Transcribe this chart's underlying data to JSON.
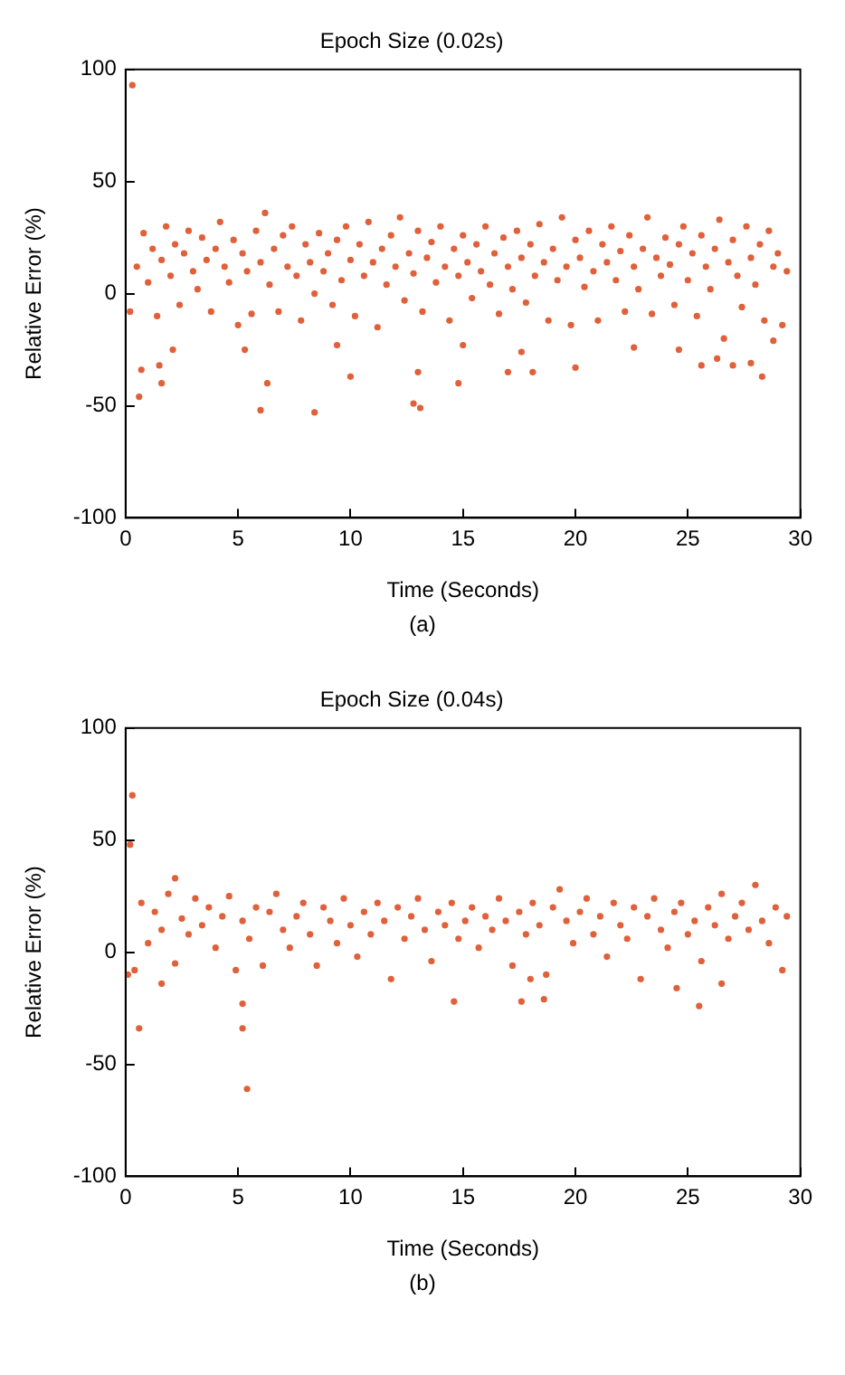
{
  "chart_data": [
    {
      "type": "scatter",
      "title": "Epoch Size (0.02s)",
      "xlabel": "Time (Seconds)",
      "ylabel": "Relative Error (%)",
      "annotations": [
        "(a)"
      ],
      "marker": "circle",
      "xlim": [
        0,
        30
      ],
      "xticks": [
        0,
        5,
        10,
        15,
        20,
        25,
        30
      ],
      "ylim": [
        -100,
        100
      ],
      "yticks": [
        -100,
        -50,
        0,
        50,
        100
      ],
      "series": [
        {
          "color": "#e0603a",
          "x": [
            0.3,
            0.6,
            0.7,
            1.5,
            1.6,
            2.1,
            5.3,
            6.0,
            6.3,
            8.4,
            9.4,
            10.0,
            13.0,
            12.8,
            13.1,
            14.8,
            15.0,
            17.0,
            17.6,
            18.1,
            20.0,
            22.6,
            24.6,
            25.6,
            26.3,
            27.0,
            27.8,
            28.3,
            28.8,
            0.2,
            0.5,
            0.8,
            1.0,
            1.2,
            1.4,
            1.6,
            1.8,
            2.0,
            2.2,
            2.4,
            2.6,
            2.8,
            3.0,
            3.2,
            3.4,
            3.6,
            3.8,
            4.0,
            4.2,
            4.4,
            4.6,
            4.8,
            5.0,
            5.2,
            5.4,
            5.6,
            5.8,
            6.0,
            6.2,
            6.4,
            6.6,
            6.8,
            7.0,
            7.2,
            7.4,
            7.6,
            7.8,
            8.0,
            8.2,
            8.4,
            8.6,
            8.8,
            9.0,
            9.2,
            9.4,
            9.6,
            9.8,
            10.0,
            10.2,
            10.4,
            10.6,
            10.8,
            11.0,
            11.2,
            11.4,
            11.6,
            11.8,
            12.0,
            12.2,
            12.4,
            12.6,
            12.8,
            13.0,
            13.2,
            13.4,
            13.6,
            13.8,
            14.0,
            14.2,
            14.4,
            14.6,
            14.8,
            15.0,
            15.2,
            15.4,
            15.6,
            15.8,
            16.0,
            16.2,
            16.4,
            16.6,
            16.8,
            17.0,
            17.2,
            17.4,
            17.6,
            17.8,
            18.0,
            18.2,
            18.4,
            18.6,
            18.8,
            19.0,
            19.2,
            19.4,
            19.6,
            19.8,
            20.0,
            20.2,
            20.4,
            20.6,
            20.8,
            21.0,
            21.2,
            21.4,
            21.6,
            21.8,
            22.0,
            22.2,
            22.4,
            22.6,
            22.8,
            23.0,
            23.2,
            23.4,
            23.6,
            23.8,
            24.0,
            24.2,
            24.4,
            24.6,
            24.8,
            25.0,
            25.2,
            25.4,
            25.6,
            25.8,
            26.0,
            26.2,
            26.4,
            26.6,
            26.8,
            27.0,
            27.2,
            27.4,
            27.6,
            27.8,
            28.0,
            28.2,
            28.4,
            28.6,
            28.8,
            29.0,
            29.2,
            29.4
          ],
          "values": [
            93,
            -46,
            -34,
            -32,
            -40,
            -25,
            -25,
            -52,
            -40,
            -53,
            -23,
            -37,
            -35,
            -49,
            -51,
            -40,
            -23,
            -35,
            -26,
            -35,
            -33,
            -24,
            -25,
            -32,
            -29,
            -32,
            -31,
            -37,
            -21,
            -8,
            12,
            27,
            5,
            20,
            -10,
            15,
            30,
            8,
            22,
            -5,
            18,
            28,
            10,
            2,
            25,
            15,
            -8,
            20,
            32,
            12,
            5,
            24,
            -14,
            18,
            10,
            -9,
            28,
            14,
            36,
            4,
            20,
            -8,
            26,
            12,
            30,
            8,
            -12,
            22,
            14,
            0,
            27,
            10,
            18,
            -5,
            24,
            6,
            30,
            15,
            -10,
            22,
            8,
            32,
            14,
            -15,
            20,
            4,
            26,
            12,
            34,
            -3,
            18,
            9,
            28,
            -8,
            16,
            23,
            5,
            30,
            12,
            -12,
            20,
            8,
            26,
            14,
            -2,
            22,
            10,
            30,
            4,
            18,
            -9,
            25,
            12,
            2,
            28,
            16,
            -4,
            22,
            8,
            31,
            14,
            -12,
            20,
            6,
            34,
            12,
            -14,
            24,
            16,
            3,
            28,
            10,
            -12,
            22,
            14,
            30,
            6,
            19,
            -8,
            26,
            12,
            2,
            20,
            34,
            -9,
            16,
            8,
            25,
            13,
            -5,
            22,
            30,
            6,
            18,
            -10,
            26,
            12,
            2,
            20,
            33,
            -20,
            14,
            24,
            8,
            -6,
            30,
            16,
            4,
            22,
            -12,
            28,
            12,
            18,
            -14,
            10
          ]
        }
      ]
    },
    {
      "type": "scatter",
      "title": "Epoch Size (0.04s)",
      "xlabel": "Time (Seconds)",
      "ylabel": "Relative Error (%)",
      "annotations": [
        "(b)"
      ],
      "marker": "circle",
      "xlim": [
        0,
        30
      ],
      "xticks": [
        0,
        5,
        10,
        15,
        20,
        25,
        30
      ],
      "ylim": [
        -100,
        100
      ],
      "yticks": [
        -100,
        -50,
        0,
        50,
        100
      ],
      "series": [
        {
          "color": "#e0603a",
          "x": [
            0.3,
            0.2,
            0.6,
            0.1,
            1.6,
            5.2,
            5.2,
            5.4,
            14.6,
            17.6,
            18.0,
            18.6,
            24.5,
            25.5,
            26.5,
            2.2,
            0.4,
            0.7,
            1.0,
            1.3,
            1.6,
            1.9,
            2.2,
            2.5,
            2.8,
            3.1,
            3.4,
            3.7,
            4.0,
            4.3,
            4.6,
            4.9,
            5.2,
            5.5,
            5.8,
            6.1,
            6.4,
            6.7,
            7.0,
            7.3,
            7.6,
            7.9,
            8.2,
            8.5,
            8.8,
            9.1,
            9.4,
            9.7,
            10.0,
            10.3,
            10.6,
            10.9,
            11.2,
            11.5,
            11.8,
            12.1,
            12.4,
            12.7,
            13.0,
            13.3,
            13.6,
            13.9,
            14.2,
            14.5,
            14.8,
            15.1,
            15.4,
            15.7,
            16.0,
            16.3,
            16.6,
            16.9,
            17.2,
            17.5,
            17.8,
            18.1,
            18.4,
            18.7,
            19.0,
            19.3,
            19.6,
            19.9,
            20.2,
            20.5,
            20.8,
            21.1,
            21.4,
            21.7,
            22.0,
            22.3,
            22.6,
            22.9,
            23.2,
            23.5,
            23.8,
            24.1,
            24.4,
            24.7,
            25.0,
            25.3,
            25.6,
            25.9,
            26.2,
            26.5,
            26.8,
            27.1,
            27.4,
            27.7,
            28.0,
            28.3,
            28.6,
            28.9,
            29.2,
            29.4
          ],
          "values": [
            70,
            48,
            -34,
            -10,
            -14,
            -23,
            -34,
            -61,
            -22,
            -22,
            -12,
            -21,
            -16,
            -24,
            -14,
            33,
            -8,
            22,
            4,
            18,
            10,
            26,
            -5,
            15,
            8,
            24,
            12,
            20,
            2,
            16,
            25,
            -8,
            14,
            6,
            20,
            -6,
            18,
            26,
            10,
            2,
            16,
            22,
            8,
            -6,
            20,
            14,
            4,
            24,
            12,
            -2,
            18,
            8,
            22,
            14,
            -12,
            20,
            6,
            16,
            24,
            10,
            -4,
            18,
            12,
            22,
            6,
            14,
            20,
            2,
            16,
            10,
            24,
            14,
            -6,
            18,
            8,
            22,
            12,
            -10,
            20,
            28,
            14,
            4,
            18,
            24,
            8,
            16,
            -2,
            22,
            12,
            6,
            20,
            -12,
            16,
            24,
            10,
            2,
            18,
            22,
            8,
            14,
            -4,
            20,
            12,
            26,
            6,
            16,
            22,
            10,
            30,
            14,
            4,
            20,
            -8,
            16
          ]
        }
      ]
    }
  ]
}
